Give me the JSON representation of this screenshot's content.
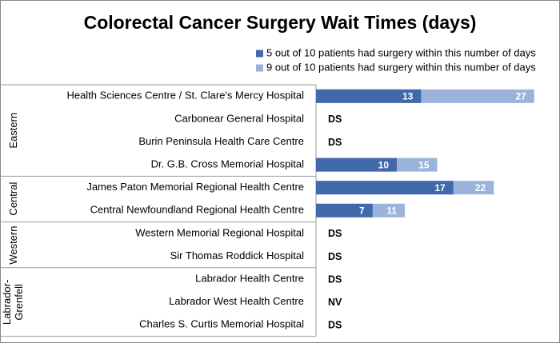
{
  "chart_data": {
    "type": "bar",
    "orientation": "horizontal",
    "bar_mode": "overlap",
    "title": "Colorectal Cancer Surgery Wait Times (days)",
    "groups": [
      {
        "name": "Eastern",
        "categories": [
          "Health Sciences Centre / St. Clare's Mercy Hospital",
          "Carbonear General Hospital",
          "Burin Peninsula Health Care Centre",
          "Dr. G.B. Cross Memorial Hospital"
        ]
      },
      {
        "name": "Central",
        "categories": [
          "James Paton Memorial Regional Health Centre",
          "Central Newfoundland Regional Health Centre"
        ]
      },
      {
        "name": "Western",
        "categories": [
          "Western Memorial Regional Hospital",
          "Sir Thomas Roddick Hospital"
        ]
      },
      {
        "name": "Labrador-Grenfell",
        "categories": [
          "Labrador Health Centre",
          "Labrador West Health Centre",
          "Charles S. Curtis Memorial Hospital"
        ]
      }
    ],
    "series": [
      {
        "name": "9 out of 10 patients had surgery within this number of days",
        "color": "#9bb3db",
        "values": [
          27,
          null,
          null,
          15,
          22,
          11,
          null,
          null,
          null,
          null,
          null
        ]
      },
      {
        "name": "5 out of 10 patients had surgery within this number of days",
        "color": "#4169a9",
        "values": [
          13,
          null,
          null,
          10,
          17,
          7,
          null,
          null,
          null,
          null,
          null
        ]
      }
    ],
    "status_labels": [
      null,
      "DS",
      "DS",
      null,
      null,
      null,
      "DS",
      "DS",
      "DS",
      "NV",
      "DS"
    ],
    "xlim": [
      0,
      30
    ]
  }
}
